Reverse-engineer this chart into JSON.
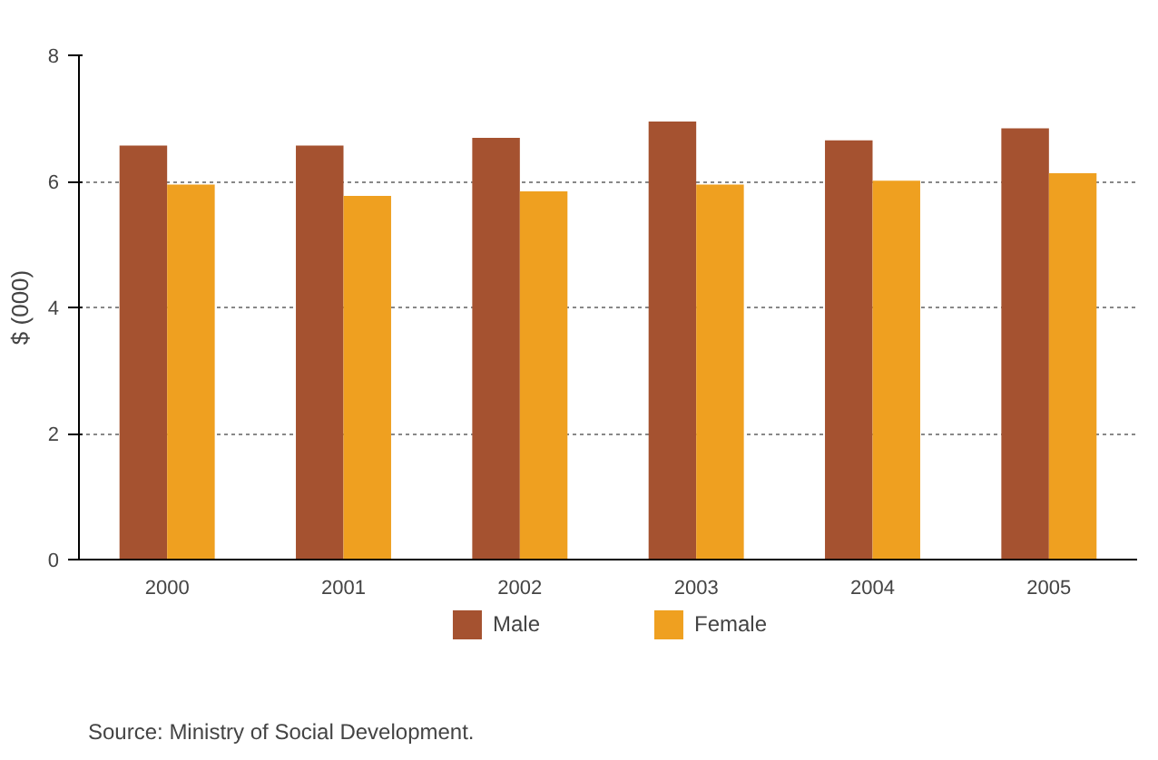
{
  "chart_data": {
    "type": "bar",
    "categories": [
      "2000",
      "2001",
      "2002",
      "2003",
      "2004",
      "2005"
    ],
    "series": [
      {
        "name": "Male",
        "color": "#a55230",
        "values": [
          6.57,
          6.57,
          6.69,
          6.95,
          6.65,
          6.84
        ]
      },
      {
        "name": "Female",
        "color": "#efa020",
        "values": [
          5.95,
          5.77,
          5.84,
          5.95,
          6.01,
          6.13
        ]
      }
    ],
    "ylabel": "$ (000)",
    "ylim": [
      0,
      8
    ],
    "yticks": [
      0,
      2,
      4,
      6,
      8
    ],
    "grid": "y",
    "legend": "bottom",
    "annotations": [
      "Source: Ministry of Social Development."
    ]
  }
}
